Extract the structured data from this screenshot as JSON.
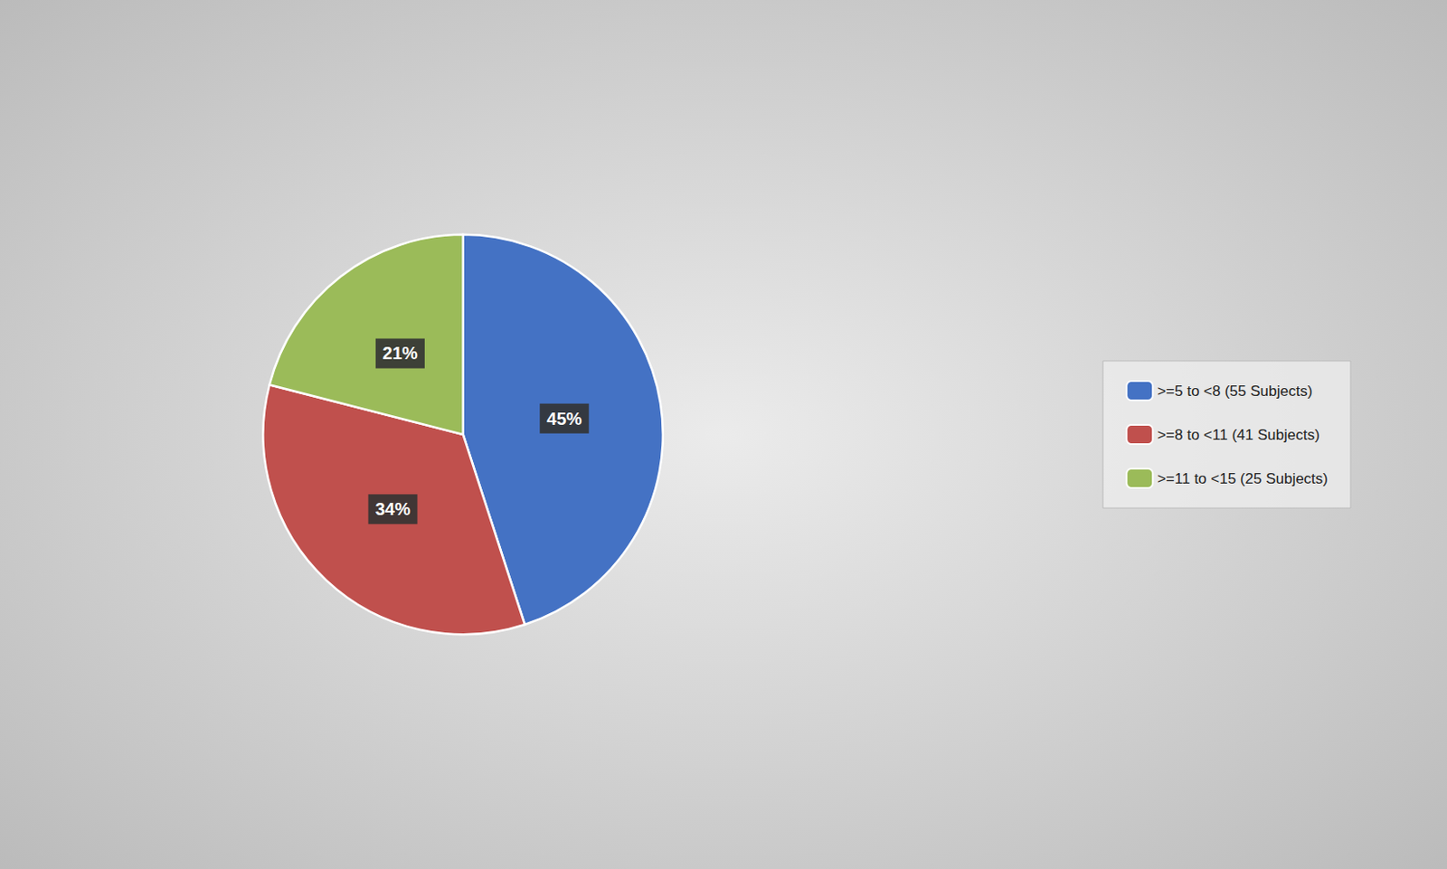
{
  "chart_data": {
    "type": "pie",
    "categories": [
      ">=5 to <8 (55 Subjects)",
      ">=8 to <11 (41 Subjects)",
      ">=11 to <15 (25 Subjects)"
    ],
    "values": [
      45,
      34,
      21
    ],
    "value_labels": [
      "45%",
      "34%",
      "21%"
    ],
    "colors": [
      "#4472C4",
      "#C0504D",
      "#9BBB59"
    ],
    "data_labels": true,
    "legend": "right"
  }
}
